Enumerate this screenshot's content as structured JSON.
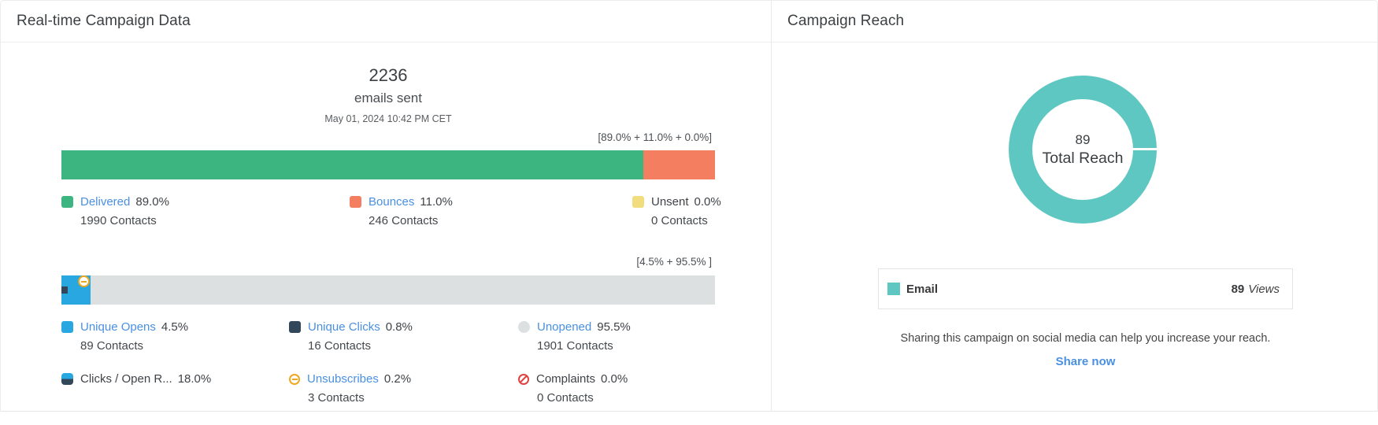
{
  "left": {
    "title": "Real-time Campaign Data",
    "sent_count": "2236",
    "sent_label": "emails sent",
    "sent_timestamp": "May 01, 2024 10:42 PM CET",
    "bar1": {
      "bracket": "[89.0% + 11.0% + 0.0%]",
      "segments": [
        {
          "name": "Delivered",
          "pct": 89,
          "color": "#3db581"
        },
        {
          "name": "Bounces",
          "pct": 11,
          "color": "#f37f60"
        },
        {
          "name": "Unsent",
          "pct": 0,
          "color": "#f2dd7e"
        }
      ],
      "legend": [
        {
          "label": "Delivered",
          "pct": "89.0%",
          "contacts": "1990 Contacts",
          "color": "#3db581"
        },
        {
          "label": "Bounces",
          "pct": "11.0%",
          "contacts": "246 Contacts",
          "color": "#f37f60"
        },
        {
          "label": "Unsent",
          "pct": "0.0%",
          "contacts": "0 Contacts",
          "color": "#f2dd7e"
        }
      ]
    },
    "bar2": {
      "bracket": "[4.5% + 95.5% ]",
      "opens_pct": 4.5,
      "colors": {
        "opens": "#29a7e0",
        "clicks": "#33475b",
        "unopened": "#dce0e0"
      },
      "legend": [
        {
          "label": "Unique Opens",
          "pct": "4.5%",
          "contacts": "89 Contacts",
          "color": "#29a7e0"
        },
        {
          "label": "Unique Clicks",
          "pct": "0.8%",
          "contacts": "16 Contacts",
          "color": "#33475b"
        },
        {
          "label": "Unopened",
          "pct": "95.5%",
          "contacts": "1901 Contacts",
          "color": "#dce0e0"
        },
        {
          "label": "Clicks / Open R...",
          "pct": "18.0%"
        },
        {
          "label": "Unsubscribes",
          "pct": "0.2%",
          "contacts": "3 Contacts"
        },
        {
          "label": "Complaints",
          "pct": "0.0%",
          "contacts": "0 Contacts"
        }
      ]
    }
  },
  "right": {
    "title": "Campaign Reach",
    "donut": {
      "value": "89",
      "label": "Total Reach",
      "color": "#5fc7c1"
    },
    "email_row": {
      "label": "Email",
      "value": "89",
      "unit": "Views",
      "color": "#5fc7c1"
    },
    "share_message": "Sharing this campaign on social media can help you increase your reach.",
    "share_cta": "Share now"
  },
  "colors": {
    "link": "#4a90e2"
  },
  "chart_data": [
    {
      "type": "bar",
      "subtype": "horizontal-stacked",
      "title": "emails sent",
      "total_emails_sent": 2236,
      "timestamp": "May 01, 2024 10:42 PM CET",
      "annotation": "[89.0% + 11.0% + 0.0%]",
      "series": [
        {
          "name": "Delivered",
          "pct": 89.0,
          "contacts": 1990,
          "color": "#3db581"
        },
        {
          "name": "Bounces",
          "pct": 11.0,
          "contacts": 246,
          "color": "#f37f60"
        },
        {
          "name": "Unsent",
          "pct": 0.0,
          "contacts": 0,
          "color": "#f2dd7e"
        }
      ],
      "legend_position": "below",
      "xlim": [
        0,
        100
      ]
    },
    {
      "type": "bar",
      "subtype": "horizontal-stacked",
      "title": "opens / clicks",
      "annotation": "[4.5% + 95.5% ]",
      "series": [
        {
          "name": "Unique Opens",
          "pct": 4.5,
          "contacts": 89,
          "color": "#29a7e0"
        },
        {
          "name": "Unique Clicks",
          "pct": 0.8,
          "contacts": 16,
          "color": "#33475b"
        },
        {
          "name": "Unopened",
          "pct": 95.5,
          "contacts": 1901,
          "color": "#dce0e0"
        },
        {
          "name": "Clicks / Open R...",
          "pct": 18.0
        },
        {
          "name": "Unsubscribes",
          "pct": 0.2,
          "contacts": 3,
          "marker": "minus-circle"
        },
        {
          "name": "Complaints",
          "pct": 0.0,
          "contacts": 0,
          "marker": "no-sign"
        }
      ],
      "legend_position": "below",
      "xlim": [
        0,
        100
      ]
    },
    {
      "type": "pie",
      "subtype": "donut",
      "title": "Campaign Reach",
      "center_value": 89,
      "center_label": "Total Reach",
      "slices": [
        {
          "label": "Email",
          "value": 89,
          "unit": "Views",
          "color": "#5fc7c1"
        }
      ]
    }
  ]
}
